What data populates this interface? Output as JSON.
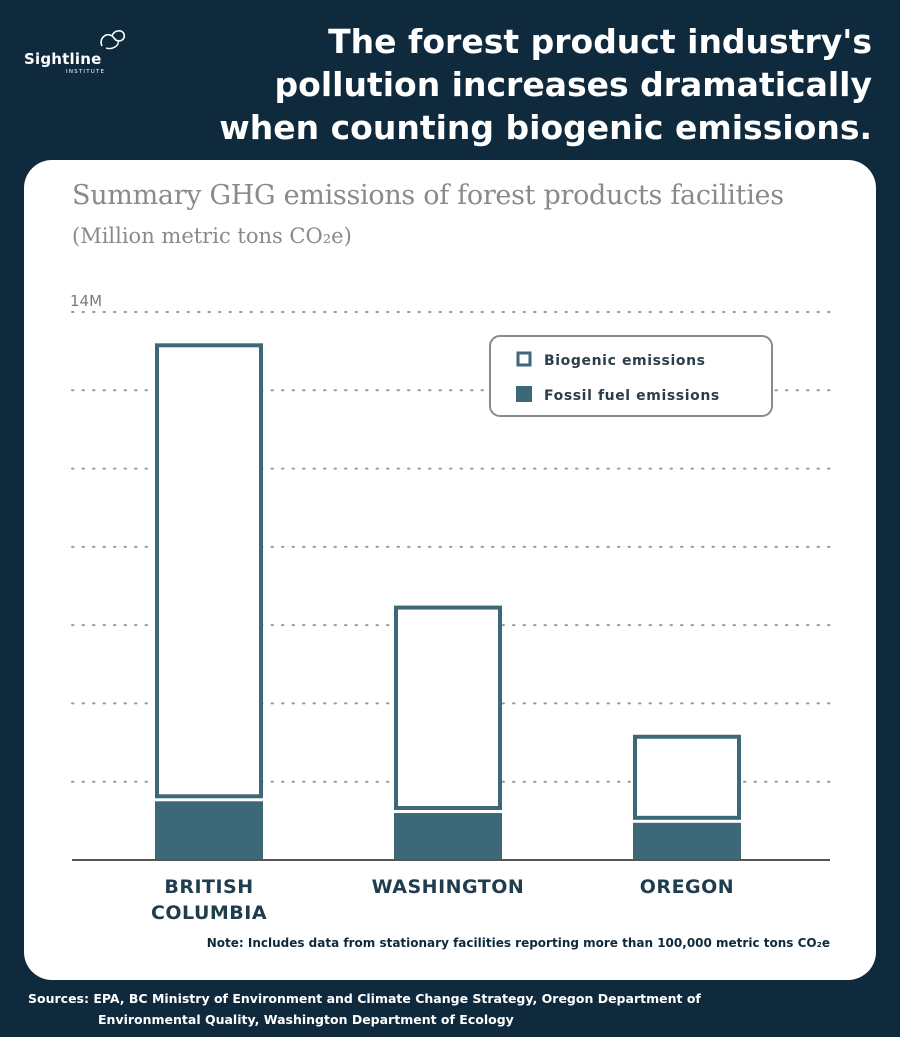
{
  "brand": {
    "name": "Sightline",
    "sub": "INSTITUTE"
  },
  "headline": {
    "line1": "The forest product industry's",
    "line2": "pollution increases dramatically",
    "line3": "when counting biogenic emissions."
  },
  "chart_data": {
    "type": "bar",
    "stacked": true,
    "title": "Summary GHG emissions of forest products facilities",
    "subtitle": "(Million metric tons CO₂e)",
    "xlabel": "",
    "ylabel": "",
    "ylim": [
      0,
      14
    ],
    "y_tick_label": "14M",
    "gridlines": "dotted",
    "legend_position": "top-right",
    "categories": [
      [
        "BRITISH",
        "COLUMBIA"
      ],
      [
        "WASHINGTON"
      ],
      [
        "OREGON"
      ]
    ],
    "series": [
      {
        "name": "Fossil fuel emissions",
        "values": [
          1.5,
          1.2,
          0.95
        ],
        "color": "#3c6878"
      },
      {
        "name": "Biogenic emissions",
        "values": [
          11.7,
          5.3,
          2.25
        ],
        "color": "#ffffff",
        "stroke": "#3c6878"
      }
    ]
  },
  "note": "Note: Includes data from stationary facilities reporting more than 100,000 metric tons CO₂e",
  "sources": {
    "label": "Sources:",
    "line1": "EPA, BC Ministry of Environment and Climate Change Strategy, Oregon Department of",
    "line2": "Environmental Quality, Washington Department of Ecology"
  }
}
